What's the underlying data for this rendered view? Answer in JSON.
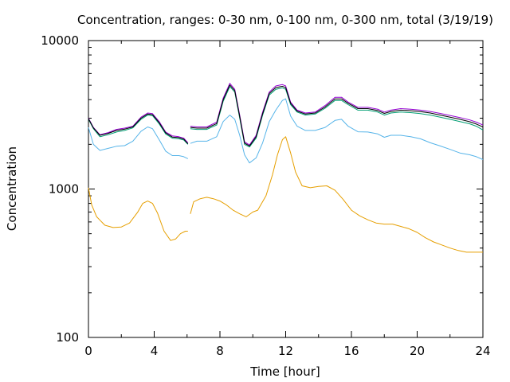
{
  "chart_data": {
    "type": "line",
    "title": "Concentration, ranges: 0-30 nm, 0-100 nm, 0-300 nm, total (3/19/19)",
    "xlabel": "Time [hour]",
    "ylabel": "Concentration",
    "xlim": [
      0,
      24
    ],
    "ylim": [
      100,
      10000
    ],
    "yscale": "log",
    "xticks": [
      "0",
      "4",
      "8",
      "12",
      "16",
      "20",
      "24"
    ],
    "yticks": [
      "100",
      "1000",
      "10000"
    ],
    "grid": false,
    "legend": "none",
    "series": [
      {
        "color": "#e69f00",
        "segments": [
          {
            "x": [
              0,
              0.2,
              0.5,
              1,
              1.5,
              2,
              2.5,
              3,
              3.3,
              3.6,
              3.9,
              4.2,
              4.6,
              5,
              5.3,
              5.6,
              5.9,
              6.05
            ],
            "y": [
              1020,
              780,
              650,
              570,
              550,
              555,
              590,
              700,
              800,
              830,
              800,
              690,
              520,
              450,
              460,
              500,
              520,
              520
            ]
          },
          {
            "x": [
              6.2,
              6.4,
              6.8,
              7.2,
              7.6,
              8,
              8.4,
              8.8,
              9.2,
              9.6,
              10,
              10.3,
              10.8,
              11.2,
              11.5,
              11.8,
              12,
              12.3,
              12.6,
              13,
              13.5,
              14,
              14.5,
              15,
              15.5,
              16,
              16.5,
              17,
              17.5,
              18,
              18.5,
              19,
              19.5,
              20,
              20.5,
              21,
              21.5,
              22,
              22.5,
              23,
              23.5,
              24
            ],
            "y": [
              680,
              820,
              860,
              880,
              860,
              830,
              780,
              720,
              680,
              650,
              700,
              720,
              900,
              1250,
              1700,
              2150,
              2250,
              1750,
              1300,
              1050,
              1020,
              1040,
              1050,
              980,
              850,
              720,
              660,
              620,
              590,
              580,
              580,
              560,
              540,
              510,
              470,
              440,
              420,
              400,
              385,
              375,
              375,
              375
            ]
          }
        ]
      },
      {
        "color": "#56b4e9",
        "segments": [
          {
            "x": [
              0,
              0.3,
              0.7,
              1.2,
              1.7,
              2.2,
              2.7,
              3.2,
              3.6,
              3.9,
              4.3,
              4.7,
              5.1,
              5.5,
              5.8,
              6.05
            ],
            "y": [
              2600,
              2000,
              1820,
              1880,
              1940,
              1960,
              2100,
              2450,
              2620,
              2550,
              2150,
              1800,
              1680,
              1680,
              1650,
              1600
            ]
          },
          {
            "x": [
              6.2,
              6.6,
              7.2,
              7.8,
              8.2,
              8.6,
              8.9,
              9.2,
              9.5,
              9.8,
              10.2,
              10.6,
              11,
              11.4,
              11.8,
              12,
              12.3,
              12.7,
              13.2,
              13.8,
              14.4,
              15,
              15.4,
              15.8,
              16.4,
              17,
              17.6,
              18,
              18.4,
              19,
              19.6,
              20.2,
              20.8,
              21.4,
              22,
              22.6,
              23.2,
              23.6,
              24
            ],
            "y": [
              2030,
              2100,
              2100,
              2250,
              2850,
              3150,
              2950,
              2300,
              1700,
              1500,
              1620,
              2050,
              2850,
              3400,
              3950,
              4050,
              3100,
              2650,
              2480,
              2480,
              2600,
              2900,
              2950,
              2650,
              2430,
              2420,
              2350,
              2230,
              2300,
              2300,
              2250,
              2180,
              2050,
              1950,
              1850,
              1750,
              1700,
              1650,
              1580
            ]
          }
        ]
      },
      {
        "color": "#009e73",
        "segments": [
          {
            "x": [
              0,
              0.3,
              0.7,
              1.2,
              1.7,
              2.2,
              2.7,
              3.2,
              3.6,
              3.9,
              4.3,
              4.7,
              5.1,
              5.5,
              5.8,
              6.05
            ],
            "y": [
              2950,
              2550,
              2250,
              2320,
              2420,
              2480,
              2580,
              2950,
              3150,
              3120,
              2750,
              2350,
              2200,
              2180,
              2140,
              2000
            ]
          },
          {
            "x": [
              6.2,
              6.6,
              7.2,
              7.8,
              8.2,
              8.6,
              8.9,
              9.2,
              9.5,
              9.8,
              10.2,
              10.6,
              11,
              11.4,
              11.8,
              12,
              12.3,
              12.7,
              13.2,
              13.8,
              14.4,
              15,
              15.4,
              15.8,
              16.4,
              17,
              17.6,
              18,
              18.4,
              19,
              19.6,
              20.2,
              20.8,
              21.4,
              22,
              22.6,
              23.2,
              23.6,
              24
            ],
            "y": [
              2550,
              2520,
              2520,
              2700,
              3900,
              4900,
              4500,
              3000,
              2000,
              1920,
              2200,
              3150,
              4300,
              4700,
              4800,
              4700,
              3700,
              3300,
              3150,
              3200,
              3500,
              3950,
              3950,
              3700,
              3400,
              3400,
              3300,
              3150,
              3250,
              3300,
              3270,
              3220,
              3150,
              3050,
              2950,
              2850,
              2750,
              2650,
              2500
            ]
          }
        ]
      },
      {
        "color": "#9400d3",
        "segments": [
          {
            "x": [
              0,
              0.3,
              0.7,
              1.2,
              1.7,
              2.2,
              2.7,
              3.2,
              3.6,
              3.9,
              4.3,
              4.7,
              5.1,
              5.5,
              5.8,
              6.05
            ],
            "y": [
              3000,
              2600,
              2320,
              2400,
              2520,
              2570,
              2650,
              3050,
              3250,
              3220,
              2850,
              2420,
              2280,
              2250,
              2200,
              2050
            ]
          },
          {
            "x": [
              6.2,
              6.6,
              7.2,
              7.8,
              8.2,
              8.6,
              8.9,
              9.2,
              9.5,
              9.8,
              10.2,
              10.6,
              11,
              11.4,
              11.8,
              12,
              12.3,
              12.7,
              13.2,
              13.8,
              14.4,
              15,
              15.4,
              15.8,
              16.4,
              17,
              17.6,
              18,
              18.4,
              19,
              19.6,
              20.2,
              20.8,
              21.4,
              22,
              22.6,
              23.2,
              23.6,
              24
            ],
            "y": [
              2650,
              2620,
              2620,
              2820,
              4100,
              5150,
              4700,
              3150,
              2080,
              1980,
              2300,
              3300,
              4500,
              4950,
              5050,
              4950,
              3850,
              3400,
              3250,
              3300,
              3650,
              4150,
              4150,
              3850,
              3550,
              3550,
              3450,
              3300,
              3400,
              3480,
              3450,
              3400,
              3330,
              3230,
              3130,
              3030,
              2920,
              2820,
              2700
            ]
          }
        ]
      },
      {
        "color": "#000000",
        "segments": [
          {
            "x": [
              0,
              0.3,
              0.7,
              1.2,
              1.7,
              2.2,
              2.7,
              3.2,
              3.6,
              3.9,
              4.3,
              4.7,
              5.1,
              5.5,
              5.8,
              6.05
            ],
            "y": [
              2980,
              2580,
              2300,
              2370,
              2480,
              2530,
              2620,
              3000,
              3200,
              3170,
              2800,
              2390,
              2240,
              2220,
              2170,
              2020
            ]
          },
          {
            "x": [
              6.2,
              6.6,
              7.2,
              7.8,
              8.2,
              8.6,
              8.9,
              9.2,
              9.5,
              9.8,
              10.2,
              10.6,
              11,
              11.4,
              11.8,
              12,
              12.3,
              12.7,
              13.2,
              13.8,
              14.4,
              15,
              15.4,
              15.8,
              16.4,
              17,
              17.6,
              18,
              18.4,
              19,
              19.6,
              20.2,
              20.8,
              21.4,
              22,
              22.6,
              23.2,
              23.6,
              24
            ],
            "y": [
              2600,
              2570,
              2570,
              2760,
              4000,
              5020,
              4600,
              3080,
              2040,
              1950,
              2250,
              3220,
              4400,
              4820,
              4920,
              4820,
              3780,
              3350,
              3200,
              3250,
              3570,
              4050,
              4050,
              3780,
              3480,
              3480,
              3380,
              3230,
              3330,
              3400,
              3370,
              3320,
              3250,
              3150,
              3050,
              2950,
              2840,
              2740,
              2620
            ]
          }
        ]
      }
    ]
  }
}
